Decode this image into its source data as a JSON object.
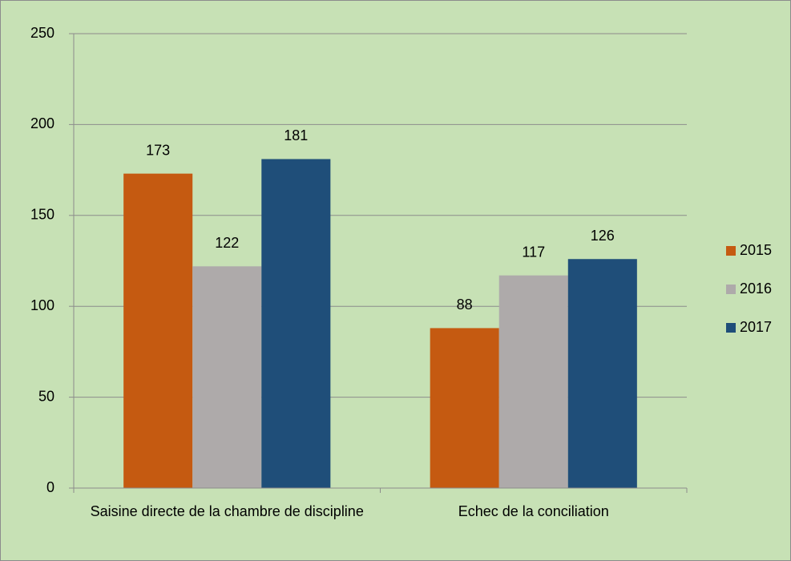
{
  "chart_data": {
    "type": "bar",
    "categories": [
      "Saisine directe de la chambre de discipline",
      "Echec de la conciliation"
    ],
    "series": [
      {
        "name": "2015",
        "color": "#c55a11",
        "values": [
          173,
          88
        ]
      },
      {
        "name": "2016",
        "color": "#aeaaaa",
        "values": [
          122,
          117
        ]
      },
      {
        "name": "2017",
        "color": "#1f4e79",
        "values": [
          181,
          126
        ]
      }
    ],
    "ylim": [
      0,
      250
    ],
    "yticks": [
      0,
      50,
      100,
      150,
      200,
      250
    ],
    "grid": true,
    "legend": "right",
    "background": "#c7e1b5"
  }
}
